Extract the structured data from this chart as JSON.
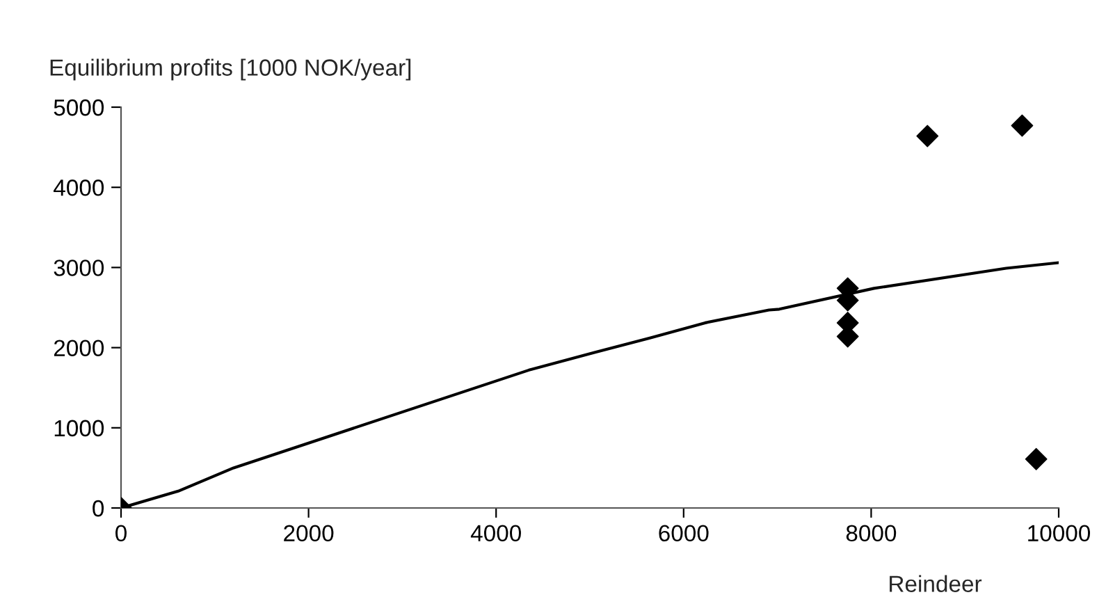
{
  "chart_data": {
    "type": "scatter",
    "ylabel": "Equilibrium profits [1000 NOK/year]",
    "xlabel": "Reindeer",
    "series": [
      {
        "color": "#000000",
        "marker": "diamond",
        "x": [
          0,
          7750,
          7750,
          7750,
          7750,
          8600,
          9610,
          9760
        ],
        "values": [
          0,
          2740,
          2590,
          2310,
          2140,
          4640,
          4770,
          610
        ]
      },
      {
        "type": "line",
        "color": "#000000",
        "marker": "none",
        "line_style": "solid",
        "x": [
          0,
          610,
          1200,
          4350,
          5050,
          5640,
          6230,
          6910,
          7020,
          8030,
          9440,
          10000
        ],
        "values": [
          0,
          210,
          500,
          1720,
          1940,
          2120,
          2310,
          2470,
          2480,
          2740,
          2990,
          3060
        ]
      }
    ],
    "xlim": [
      0,
      10000
    ],
    "xticks": [
      0,
      2000,
      4000,
      6000,
      8000,
      10000
    ],
    "ylim": [
      0,
      5000
    ],
    "yticks": [
      0,
      1000,
      2000,
      3000,
      4000,
      5000
    ],
    "grid": false,
    "legend": false
  }
}
